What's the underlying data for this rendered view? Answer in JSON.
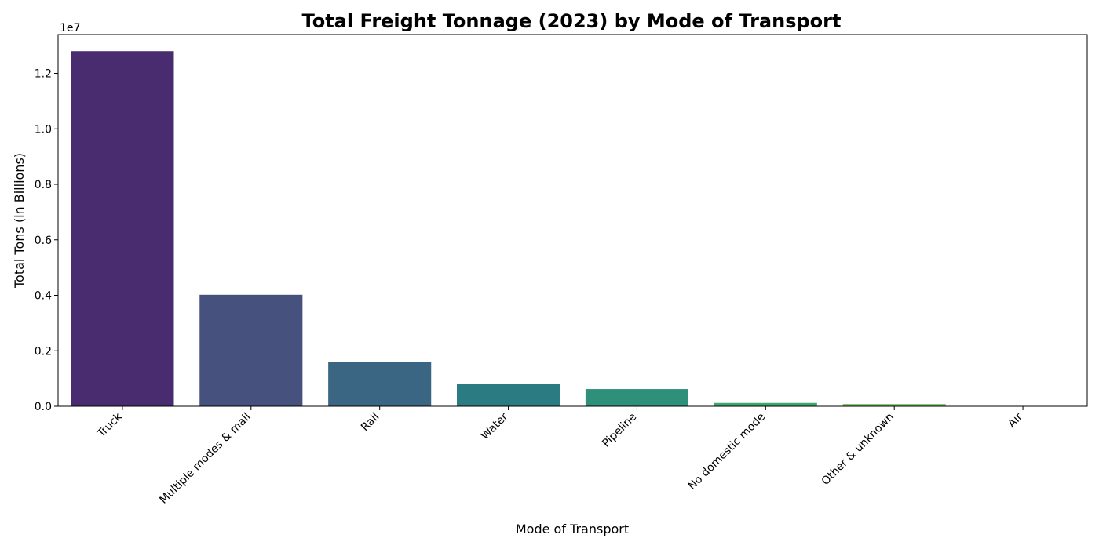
{
  "chart_data": {
    "type": "bar",
    "title": "Total Freight Tonnage (2023) by Mode of Transport",
    "xlabel": "Mode of Transport",
    "ylabel": "Total Tons (in Billions)",
    "offset_label": "1e7",
    "categories": [
      "Truck",
      "Multiple modes & mail",
      "Rail",
      "Water",
      "Pipeline",
      "No domestic mode",
      "Other & unknown",
      "Air"
    ],
    "values": [
      12800000,
      4020000,
      1590000,
      800000,
      620000,
      120000,
      80000,
      5000
    ],
    "ylim": [
      0,
      13400000
    ],
    "yticks": [
      0,
      2000000,
      4000000,
      6000000,
      8000000,
      10000000,
      12000000
    ],
    "ytick_labels": [
      "0.0",
      "0.2",
      "0.4",
      "0.6",
      "0.8",
      "1.0",
      "1.2"
    ],
    "colors": [
      "#482c6f",
      "#46517e",
      "#3b6683",
      "#2a7b82",
      "#2e9079",
      "#3ba96a",
      "#72ba5b",
      "#b8d245"
    ],
    "grid": false,
    "legend": "none"
  }
}
